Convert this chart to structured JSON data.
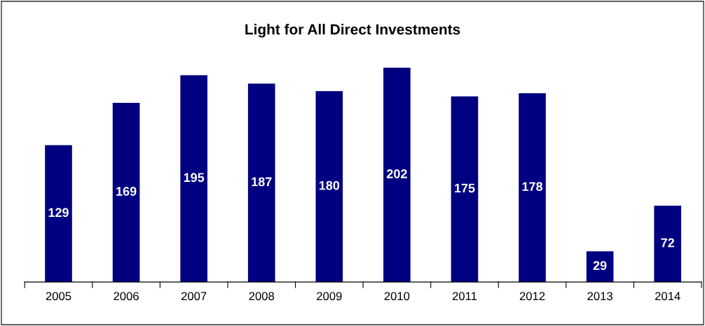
{
  "chart_data": {
    "type": "bar",
    "title": "Light for All Direct Investments",
    "categories": [
      "2005",
      "2006",
      "2007",
      "2008",
      "2009",
      "2010",
      "2011",
      "2012",
      "2013",
      "2014"
    ],
    "values": [
      129,
      169,
      195,
      187,
      180,
      202,
      175,
      178,
      29,
      72
    ],
    "color": "#000080",
    "data_labels": true,
    "grid": false,
    "legend": false
  }
}
